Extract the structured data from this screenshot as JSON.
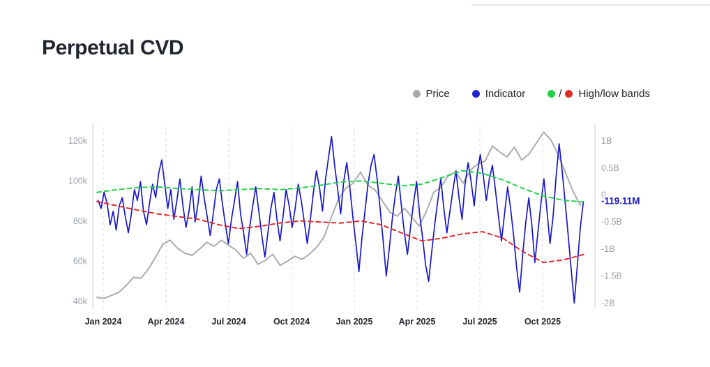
{
  "page": {
    "title": "Perpetual CVD"
  },
  "legend": [
    {
      "label": "Price",
      "color": "#a8a8a8"
    },
    {
      "label": "Indicator",
      "color": "#2323d2"
    },
    {
      "label": "High/low bands",
      "colors": [
        "#1fd24a",
        "#e02929"
      ],
      "separator": "/"
    }
  ],
  "chart_data": {
    "type": "line",
    "title": "Perpetual CVD",
    "grid": "vertical-dashed",
    "legend_position": "top-right",
    "x_axis": {
      "unit": "months since Jan 2024",
      "range": [
        -0.5,
        23.5
      ],
      "tick_positions": [
        0,
        3,
        6,
        9,
        12,
        15,
        18,
        21
      ],
      "tick_labels": [
        "Jan 2024",
        "Apr 2024",
        "Jul 2024",
        "Oct 2024",
        "Jan 2025",
        "Apr 2025",
        "Jul 2025",
        "Oct 2025"
      ]
    },
    "left_axis": {
      "label": "Price",
      "unit": "k",
      "range": [
        36.5,
        127
      ],
      "tick_values": [
        40,
        60,
        80,
        100,
        120
      ],
      "ticks": [
        "40k",
        "60k",
        "80k",
        "100k",
        "120k"
      ]
    },
    "right_axis": {
      "label": "Indicator",
      "unit": "B",
      "range": [
        -2.1,
        1.26
      ],
      "tick_values": [
        1,
        0.5,
        0,
        -0.5,
        -1,
        -1.5,
        -2
      ],
      "ticks": [
        "1B",
        "0.5B",
        "0",
        "-0.5B",
        "-1B",
        "-1.5B",
        "-2B"
      ]
    },
    "series": [
      {
        "name": "Price",
        "axis": "left",
        "color": "#ababab",
        "style": "solid",
        "width": 2,
        "x_start": -0.3,
        "x_step": 0.35,
        "values": [
          42,
          41.5,
          43,
          44.5,
          48,
          52,
          51.5,
          56,
          62,
          68.5,
          70.5,
          66.5,
          64,
          63,
          66,
          69.5,
          67.5,
          70.5,
          68,
          65.5,
          61.5,
          64,
          58.5,
          60.5,
          63.5,
          58,
          60,
          62.5,
          61,
          63.5,
          67,
          72,
          82,
          91,
          96.5,
          99,
          104.5,
          98,
          95.5,
          90,
          84.5,
          82.5,
          86.5,
          82,
          77.5,
          85,
          94.5,
          97,
          103,
          104.5,
          99,
          105.5,
          108.5,
          110,
          117.5,
          114.5,
          112,
          117,
          110.5,
          113.5,
          119,
          124.5,
          120.5,
          113,
          104,
          95,
          88
        ]
      },
      {
        "name": "Indicator",
        "axis": "right",
        "color": "#1717cd",
        "style": "solid",
        "width": 1.7,
        "x_start": -0.25,
        "x_step": 0.145,
        "values": [
          -0.1,
          -0.25,
          0.05,
          -0.15,
          -0.55,
          -0.3,
          -0.65,
          -0.2,
          -0.05,
          -0.4,
          -0.7,
          -0.35,
          0.1,
          -0.1,
          0.25,
          -0.3,
          -0.55,
          -0.15,
          0.2,
          -0.05,
          0.4,
          0.65,
          0.2,
          -0.25,
          0.1,
          -0.45,
          -0.1,
          0.3,
          -0.2,
          -0.6,
          -0.3,
          0.15,
          -0.5,
          -0.15,
          0.35,
          -0.05,
          -0.4,
          -0.75,
          -0.35,
          0.1,
          0.3,
          -0.15,
          -0.55,
          -0.9,
          -0.45,
          -0.1,
          0.25,
          -0.35,
          -0.7,
          -1.1,
          -0.6,
          -0.2,
          0.15,
          -0.3,
          -0.75,
          -1.15,
          -0.7,
          -0.25,
          0.05,
          -0.45,
          -0.85,
          -0.4,
          0.1,
          -0.2,
          -0.6,
          -0.25,
          0.2,
          -0.1,
          -0.5,
          -0.9,
          -0.45,
          0.05,
          0.45,
          0.15,
          -0.3,
          0.3,
          0.7,
          1.08,
          0.55,
          0.1,
          -0.35,
          0.25,
          0.6,
          0.15,
          -0.4,
          -0.9,
          -1.42,
          -0.8,
          -0.3,
          0.2,
          0.55,
          0.75,
          0.3,
          -0.25,
          -0.85,
          -1.5,
          -1.0,
          -0.45,
          0.0,
          0.35,
          -0.2,
          -0.7,
          -1.1,
          -0.6,
          -0.15,
          0.25,
          -0.35,
          -0.8,
          -1.3,
          -1.6,
          -1.05,
          -0.55,
          -0.1,
          0.3,
          -0.25,
          -0.7,
          -0.3,
          0.1,
          0.45,
          -0.05,
          -0.45,
          0.2,
          0.6,
          0.25,
          -0.2,
          0.4,
          0.75,
          0.35,
          -0.1,
          0.3,
          0.55,
          0.1,
          -0.4,
          -0.85,
          -0.35,
          0.15,
          -0.25,
          -0.75,
          -1.35,
          -1.8,
          -1.1,
          -0.5,
          -0.05,
          -0.55,
          -1.25,
          -0.7,
          -0.15,
          0.3,
          -0.3,
          -0.9,
          -0.4,
          0.35,
          0.95,
          0.45,
          -0.15,
          -0.75,
          -1.4,
          -2.0,
          -1.3,
          -0.6,
          -0.119
        ]
      },
      {
        "name": "High band",
        "axis": "right",
        "color": "#1fd24a",
        "style": "dashed",
        "width": 2,
        "x_start": -0.3,
        "x_step": 0.97,
        "values": [
          0.05,
          0.1,
          0.14,
          0.15,
          0.12,
          0.1,
          0.08,
          0.1,
          0.12,
          0.1,
          0.13,
          0.18,
          0.24,
          0.26,
          0.22,
          0.17,
          0.2,
          0.32,
          0.45,
          0.4,
          0.28,
          0.12,
          -0.02,
          -0.1,
          -0.13
        ]
      },
      {
        "name": "Low band",
        "axis": "right",
        "color": "#e02929",
        "style": "dashed",
        "width": 2,
        "x_start": -0.3,
        "x_step": 0.97,
        "values": [
          -0.12,
          -0.2,
          -0.28,
          -0.35,
          -0.4,
          -0.45,
          -0.55,
          -0.62,
          -0.58,
          -0.52,
          -0.48,
          -0.5,
          -0.52,
          -0.48,
          -0.55,
          -0.7,
          -0.85,
          -0.8,
          -0.72,
          -0.68,
          -0.8,
          -1.05,
          -1.25,
          -1.2,
          -1.1
        ]
      }
    ],
    "last_value_label": {
      "text": "-119.11M",
      "color": "#1717cd",
      "value_b": -0.11911
    }
  }
}
